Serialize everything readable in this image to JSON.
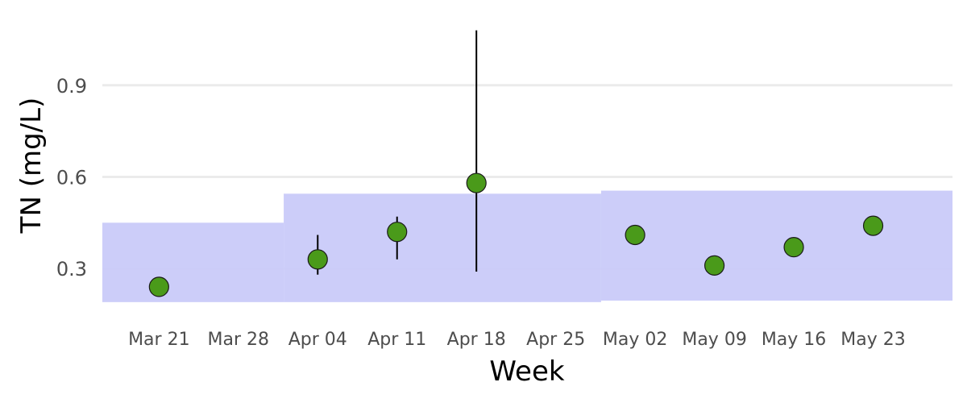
{
  "chart_data": {
    "type": "scatter",
    "title": "",
    "xlabel": "Week",
    "ylabel": "TN (mg/L)",
    "x_ticks": [
      "Mar 21",
      "Mar 28",
      "Apr 04",
      "Apr 11",
      "Apr 18",
      "Apr 25",
      "May 02",
      "May 09",
      "May 16",
      "May 23"
    ],
    "y_ticks": [
      "0.3",
      "0.6",
      "0.9"
    ],
    "y_tick_values": [
      0.3,
      0.6,
      0.9
    ],
    "ylim": [
      0.15,
      1.1
    ],
    "xlim": [
      "Mar 16",
      "May 30"
    ],
    "grid": "horizontal",
    "colors": {
      "points": "#4a9a1a",
      "point_edge": "#1a1a1a",
      "band": "#c9caf9",
      "grid": "#ebebeb",
      "error_bar": "#000000"
    },
    "bands": [
      {
        "x_start": "Mar 16",
        "x_end": "Apr 01",
        "y_low": 0.19,
        "y_high": 0.45
      },
      {
        "x_start": "Apr 01",
        "x_end": "Apr 29",
        "y_low": 0.19,
        "y_high": 0.545
      },
      {
        "x_start": "Apr 29",
        "x_end": "May 30",
        "y_low": 0.195,
        "y_high": 0.555
      }
    ],
    "points": [
      {
        "x": "Mar 21",
        "y": 0.24
      },
      {
        "x": "Apr 04",
        "y": 0.33,
        "y_min": 0.28,
        "y_max": 0.41
      },
      {
        "x": "Apr 11",
        "y": 0.42,
        "y_min": 0.33,
        "y_max": 0.47
      },
      {
        "x": "Apr 18",
        "y": 0.58,
        "y_min": 0.29,
        "y_max": 1.08
      },
      {
        "x": "May 02",
        "y": 0.41
      },
      {
        "x": "May 09",
        "y": 0.31
      },
      {
        "x": "May 16",
        "y": 0.37
      },
      {
        "x": "May 23",
        "y": 0.44
      }
    ]
  }
}
